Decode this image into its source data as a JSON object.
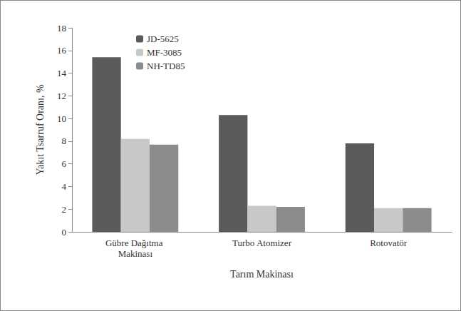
{
  "chart_data": {
    "type": "bar",
    "categories": [
      "Gübre Dağıtma Makinası",
      "Turbo Atomizer",
      "Rotovatör"
    ],
    "series": [
      {
        "name": "JD-5625",
        "color": "#5a5a5a",
        "values": [
          15.4,
          10.3,
          7.8
        ]
      },
      {
        "name": "MF-3085",
        "color": "#c8c8c8",
        "values": [
          8.2,
          2.3,
          2.1
        ]
      },
      {
        "name": "NH-TD85",
        "color": "#8c8c8c",
        "values": [
          7.7,
          2.2,
          2.1
        ]
      }
    ],
    "x_label": "Tarım Makinası",
    "y_label": "Yakıt Tsarruf Oranı, %",
    "ylim": [
      0,
      18
    ],
    "yticks": [
      0,
      2,
      4,
      6,
      8,
      10,
      12,
      14,
      16,
      18
    ],
    "grid": false,
    "legend": "upper left"
  }
}
